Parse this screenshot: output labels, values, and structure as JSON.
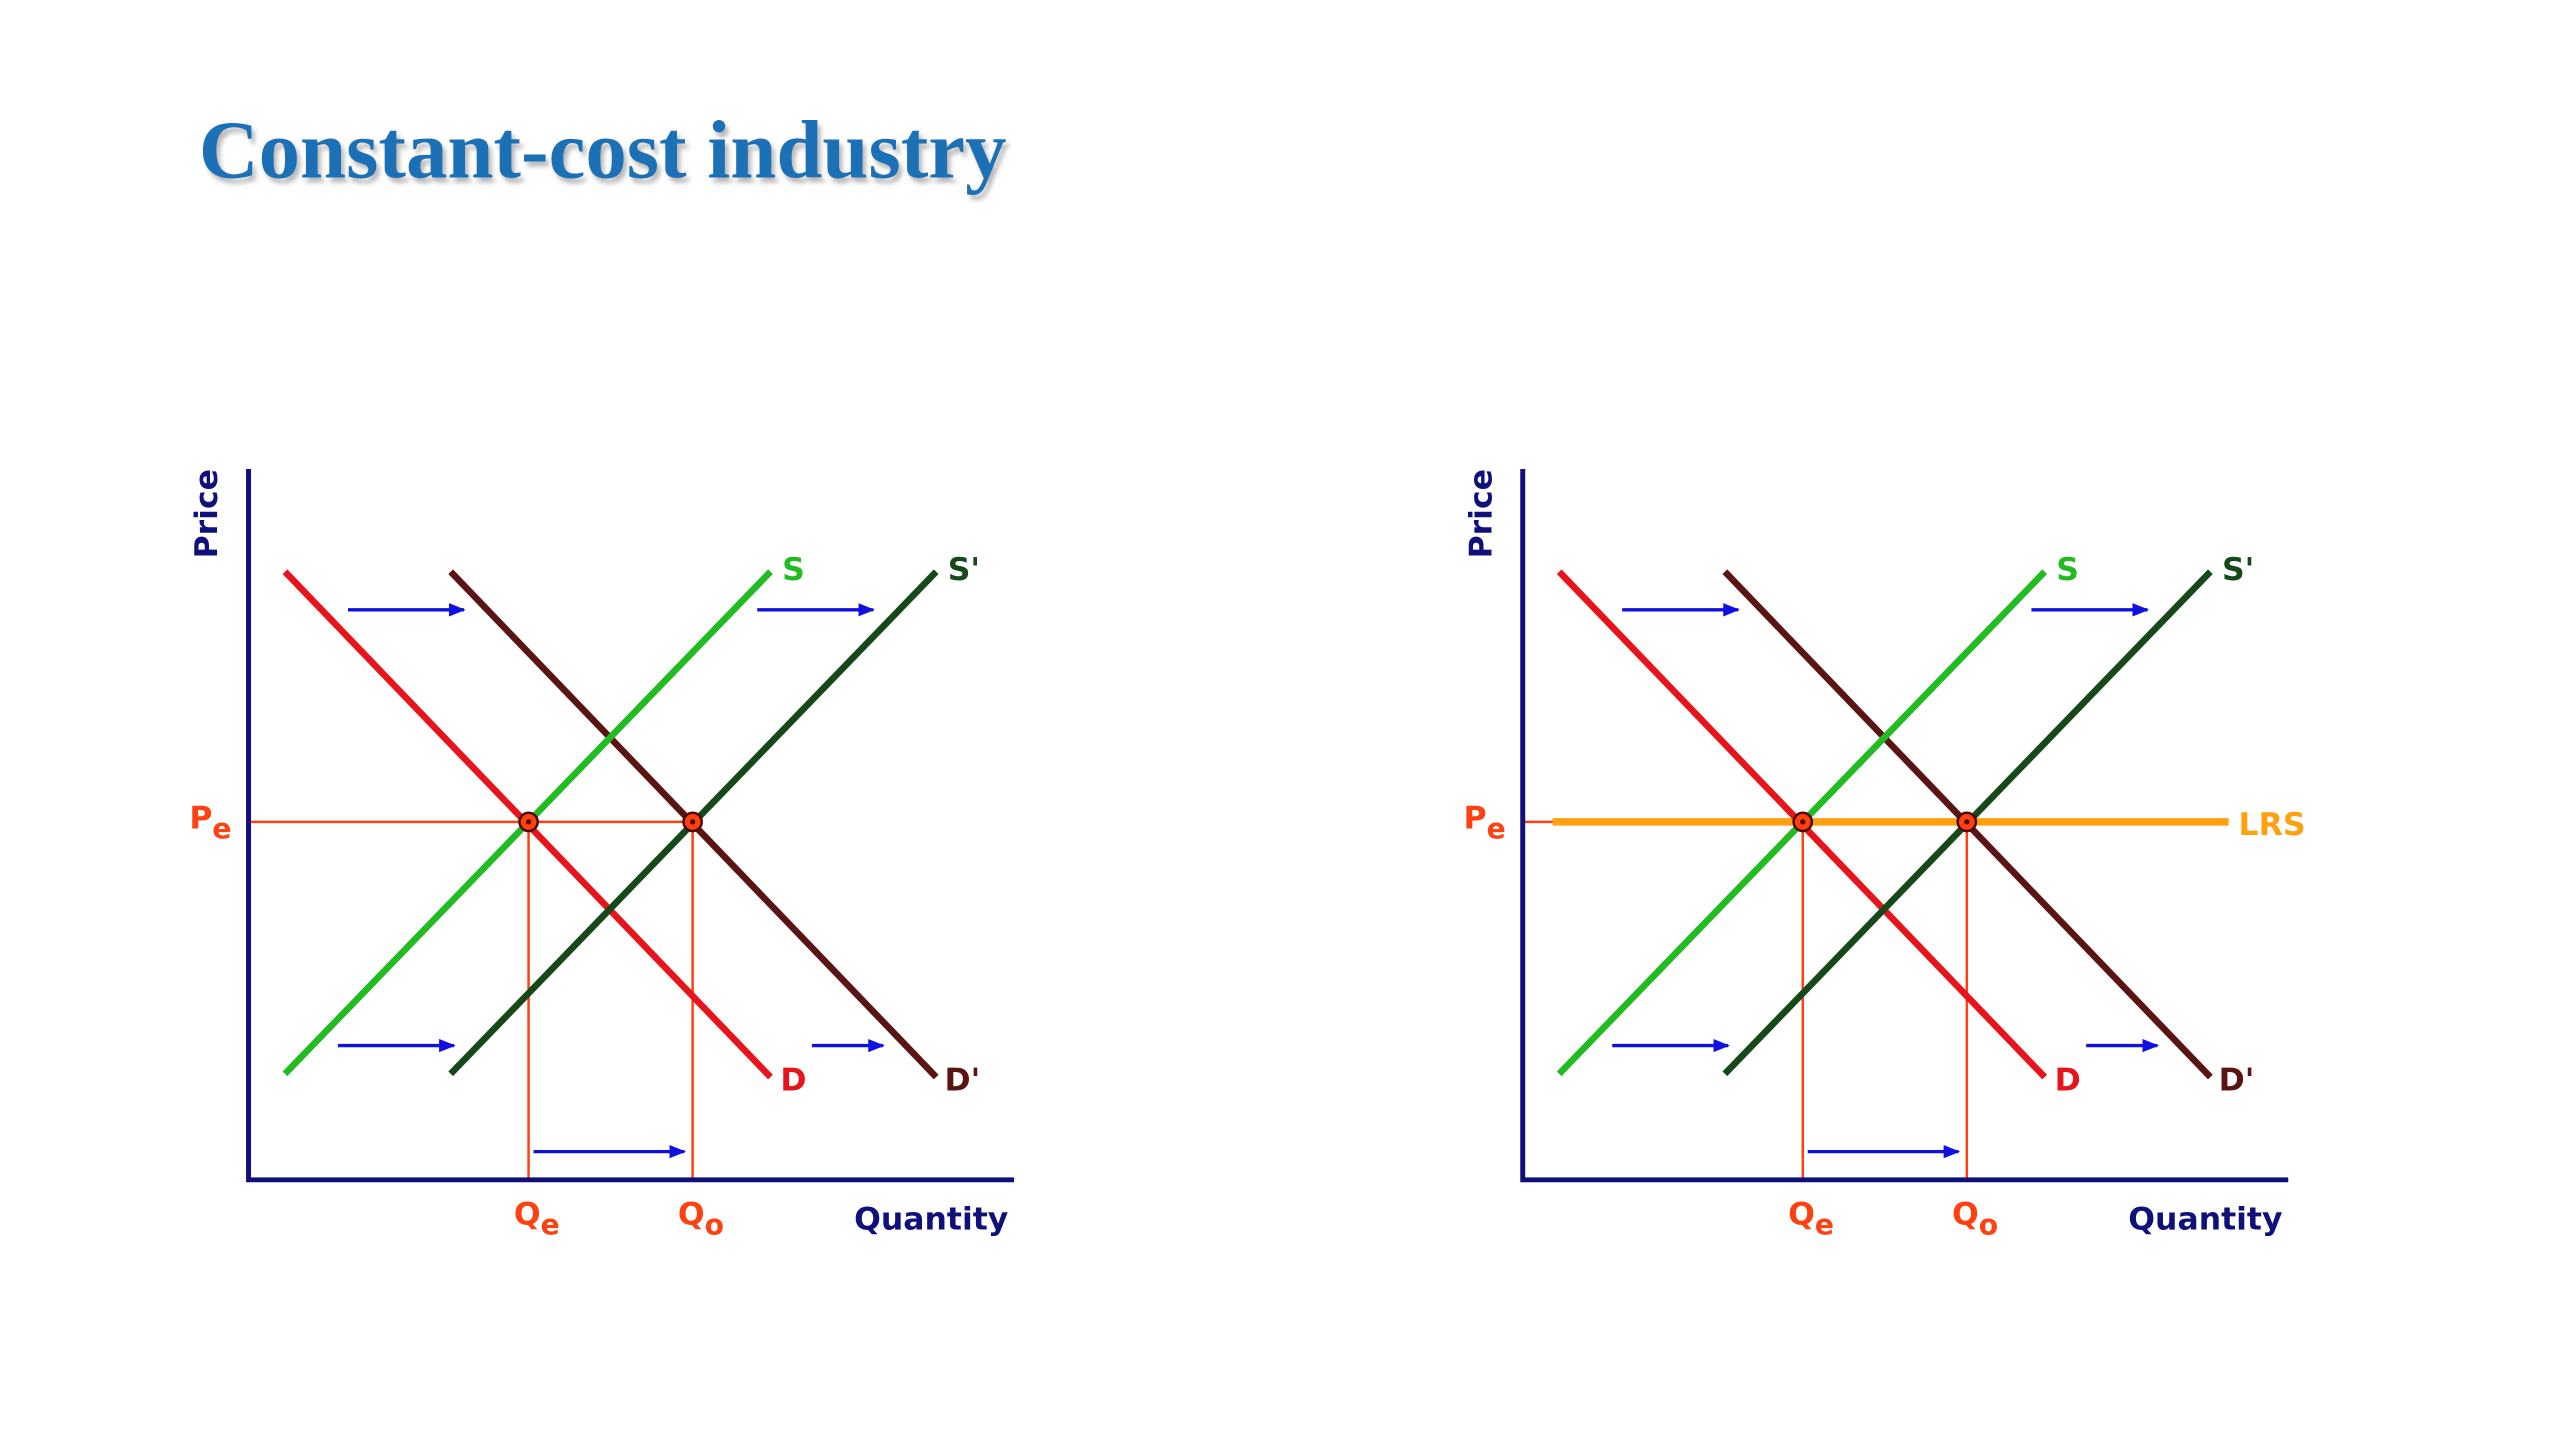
{
  "title": "Constant-cost industry",
  "diagrams": [
    {
      "y_axis_label": "Price",
      "x_axis_label": "Quantity",
      "supply": "S",
      "supply_shifted": "S'",
      "demand": "D",
      "demand_shifted": "D'",
      "price_label": {
        "letter": "P",
        "subscript": "e"
      },
      "quantity_labels": [
        {
          "letter": "Q",
          "subscript": "e"
        },
        {
          "letter": "Q",
          "subscript": "o"
        }
      ]
    },
    {
      "y_axis_label": "Price",
      "x_axis_label": "Quantity",
      "supply": "S",
      "supply_shifted": "S'",
      "demand": "D",
      "demand_shifted": "D'",
      "price_label": {
        "letter": "P",
        "subscript": "e"
      },
      "quantity_labels": [
        {
          "letter": "Q",
          "subscript": "e"
        },
        {
          "letter": "Q",
          "subscript": "o"
        }
      ],
      "long_run_supply": "LRS"
    }
  ]
}
